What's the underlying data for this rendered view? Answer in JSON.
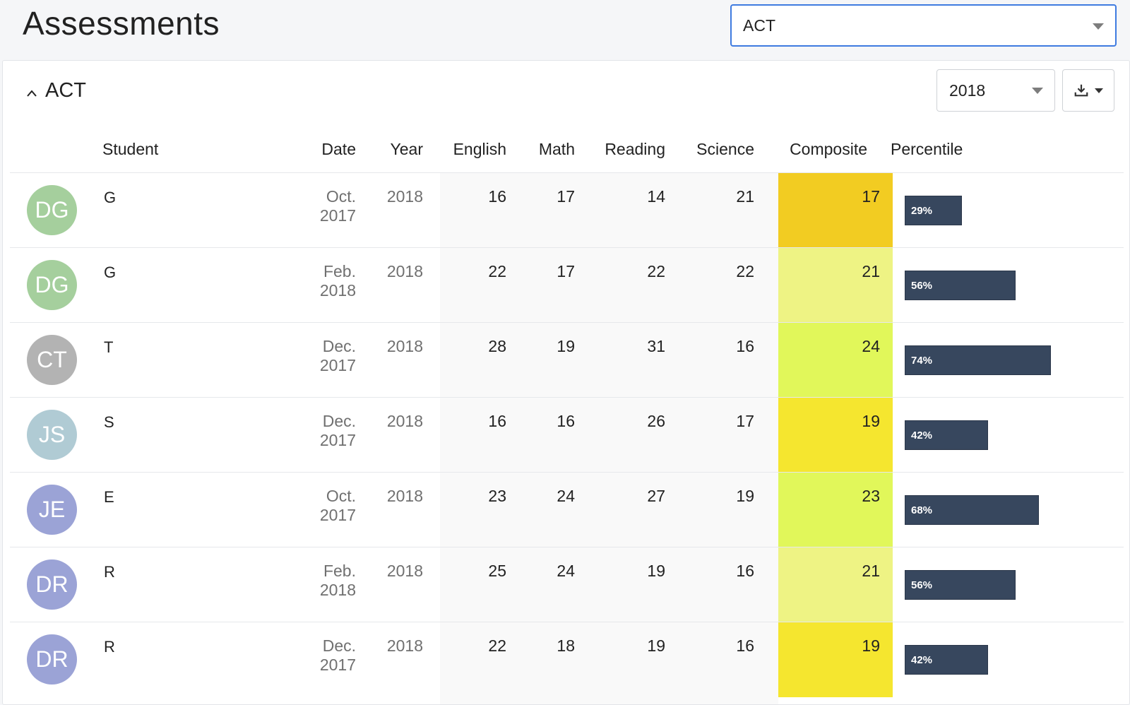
{
  "header": {
    "title": "Assessments",
    "assessment_select": "ACT"
  },
  "card": {
    "title": "ACT",
    "year_select": "2018"
  },
  "columns": {
    "student": "Student",
    "date": "Date",
    "year": "Year",
    "english": "English",
    "math": "Math",
    "reading": "Reading",
    "science": "Science",
    "composite": "Composite",
    "percentile": "Percentile"
  },
  "colors": {
    "select_border": "#3f7be0",
    "bar": "#37475e",
    "composite_17": "#f2cc22",
    "composite_19": "#f5e62f",
    "composite_21": "#eef384",
    "composite_23": "#e1f75a",
    "composite_24": "#e1f75a"
  },
  "rows": [
    {
      "initials": "DG",
      "avatar_color": "#a5cf9d",
      "name_visible": "G",
      "date": "Oct. 2017",
      "year": "2018",
      "english": "16",
      "math": "17",
      "reading": "14",
      "science": "21",
      "composite": "17",
      "composite_color": "#f2cc22",
      "percentile": "29%",
      "percentile_value": 29
    },
    {
      "initials": "DG",
      "avatar_color": "#a5cf9d",
      "name_visible": "G",
      "date": "Feb. 2018",
      "year": "2018",
      "english": "22",
      "math": "17",
      "reading": "22",
      "science": "22",
      "composite": "21",
      "composite_color": "#eef384",
      "percentile": "56%",
      "percentile_value": 56
    },
    {
      "initials": "CT",
      "avatar_color": "#b3b3b3",
      "name_visible": "T",
      "date": "Dec. 2017",
      "year": "2018",
      "english": "28",
      "math": "19",
      "reading": "31",
      "science": "16",
      "composite": "24",
      "composite_color": "#e1f75a",
      "percentile": "74%",
      "percentile_value": 74
    },
    {
      "initials": "JS",
      "avatar_color": "#b0cbd4",
      "name_visible": "S",
      "date": "Dec. 2017",
      "year": "2018",
      "english": "16",
      "math": "16",
      "reading": "26",
      "science": "17",
      "composite": "19",
      "composite_color": "#f5e62f",
      "percentile": "42%",
      "percentile_value": 42
    },
    {
      "initials": "JE",
      "avatar_color": "#9ba3d6",
      "name_visible": "E",
      "date": "Oct. 2017",
      "year": "2018",
      "english": "23",
      "math": "24",
      "reading": "27",
      "science": "19",
      "composite": "23",
      "composite_color": "#e1f75a",
      "percentile": "68%",
      "percentile_value": 68
    },
    {
      "initials": "DR",
      "avatar_color": "#9ba3d6",
      "name_visible": "R",
      "date": "Feb. 2018",
      "year": "2018",
      "english": "25",
      "math": "24",
      "reading": "19",
      "science": "16",
      "composite": "21",
      "composite_color": "#eef384",
      "percentile": "56%",
      "percentile_value": 56
    },
    {
      "initials": "DR",
      "avatar_color": "#9ba3d6",
      "name_visible": "R",
      "date": "Dec. 2017",
      "year": "2018",
      "english": "22",
      "math": "18",
      "reading": "19",
      "science": "16",
      "composite": "19",
      "composite_color": "#f5e62f",
      "percentile": "42%",
      "percentile_value": 42
    }
  ]
}
